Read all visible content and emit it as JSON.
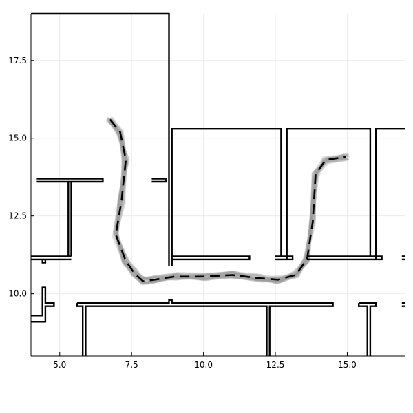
{
  "chart_data": {
    "type": "line",
    "title": "",
    "xlabel": "",
    "ylabel": "",
    "xlim": [
      4.0,
      17.0
    ],
    "ylim": [
      8.0,
      19.0
    ],
    "grid": true,
    "legend": "none",
    "xticks": [
      5.0,
      7.5,
      10.0,
      12.5,
      15.0
    ],
    "xtick_labels": [
      "5.0",
      "7.5",
      "10.0",
      "12.5",
      "15.0"
    ],
    "yticks": [
      10.0,
      12.5,
      15.0,
      17.5
    ],
    "ytick_labels": [
      "10.0",
      "12.5",
      "15.0",
      "17.5"
    ],
    "colors": {
      "walls": "#000000",
      "samples": "#9a9a9a",
      "mean_path": "#000000",
      "grid": "#ebebeb"
    },
    "walls": [
      [
        [
          4.0,
          19.0
        ],
        [
          8.8,
          19.0
        ],
        [
          8.8,
          10.9
        ]
      ],
      [
        [
          8.9,
          10.9
        ],
        [
          8.9,
          15.3
        ],
        [
          12.7,
          15.3
        ],
        [
          12.7,
          11.2
        ]
      ],
      [
        [
          8.9,
          11.2
        ],
        [
          11.6,
          11.2
        ],
        [
          11.6,
          11.1
        ],
        [
          8.9,
          11.1
        ]
      ],
      [
        [
          12.9,
          11.1
        ],
        [
          12.9,
          15.3
        ],
        [
          15.8,
          15.3
        ],
        [
          15.8,
          11.2
        ]
      ],
      [
        [
          12.5,
          11.2
        ],
        [
          13.1,
          11.2
        ],
        [
          13.1,
          11.1
        ],
        [
          12.5,
          11.1
        ]
      ],
      [
        [
          13.6,
          11.2
        ],
        [
          16.2,
          11.2
        ],
        [
          16.2,
          11.1
        ],
        [
          13.6,
          11.1
        ]
      ],
      [
        [
          16.0,
          11.1
        ],
        [
          16.0,
          15.3
        ],
        [
          17.0,
          15.3
        ]
      ],
      [
        [
          16.9,
          11.1
        ],
        [
          17.0,
          11.1
        ]
      ],
      [
        [
          16.9,
          11.2
        ],
        [
          17.0,
          11.2
        ]
      ],
      [
        [
          4.2,
          13.7
        ],
        [
          6.5,
          13.7
        ],
        [
          6.5,
          13.6
        ],
        [
          4.2,
          13.6
        ]
      ],
      [
        [
          5.3,
          13.6
        ],
        [
          5.3,
          11.2
        ]
      ],
      [
        [
          5.4,
          13.6
        ],
        [
          5.4,
          11.2
        ]
      ],
      [
        [
          4.0,
          11.2
        ],
        [
          5.4,
          11.2
        ]
      ],
      [
        [
          4.0,
          11.1
        ],
        [
          5.4,
          11.1
        ]
      ],
      [
        [
          4.4,
          11.1
        ],
        [
          4.4,
          11.0
        ],
        [
          4.5,
          11.0
        ],
        [
          4.5,
          11.1
        ]
      ],
      [
        [
          8.2,
          13.7
        ],
        [
          8.7,
          13.7
        ],
        [
          8.7,
          13.6
        ],
        [
          8.2,
          13.6
        ]
      ],
      [
        [
          4.0,
          9.3
        ],
        [
          4.4,
          9.3
        ],
        [
          4.4,
          10.2
        ],
        [
          4.5,
          10.2
        ],
        [
          4.5,
          9.7
        ],
        [
          4.8,
          9.7
        ],
        [
          4.8,
          9.6
        ],
        [
          4.5,
          9.6
        ],
        [
          4.5,
          9.1
        ],
        [
          4.0,
          9.1
        ]
      ],
      [
        [
          5.6,
          9.7
        ],
        [
          8.8,
          9.7
        ],
        [
          8.8,
          9.8
        ],
        [
          8.9,
          9.8
        ],
        [
          8.9,
          9.7
        ],
        [
          14.5,
          9.7
        ],
        [
          14.5,
          9.6
        ],
        [
          12.3,
          9.6
        ],
        [
          12.3,
          8.0
        ]
      ],
      [
        [
          12.2,
          8.0
        ],
        [
          12.2,
          9.6
        ],
        [
          8.9,
          9.6
        ],
        [
          5.9,
          9.6
        ],
        [
          5.9,
          8.0
        ]
      ],
      [
        [
          5.8,
          8.0
        ],
        [
          5.8,
          9.6
        ],
        [
          5.6,
          9.6
        ],
        [
          5.6,
          9.7
        ]
      ],
      [
        [
          15.4,
          9.7
        ],
        [
          16.0,
          9.7
        ],
        [
          16.0,
          9.6
        ],
        [
          15.8,
          9.6
        ],
        [
          15.8,
          8.0
        ]
      ],
      [
        [
          15.7,
          8.0
        ],
        [
          15.7,
          9.6
        ],
        [
          15.4,
          9.6
        ],
        [
          15.4,
          9.7
        ]
      ],
      [
        [
          16.9,
          9.7
        ],
        [
          17.0,
          9.7
        ]
      ],
      [
        [
          16.9,
          9.6
        ],
        [
          17.0,
          9.6
        ]
      ]
    ],
    "series": [
      {
        "style": "dashed",
        "x": [
          6.75,
          7.1,
          7.3,
          7.15,
          6.95,
          7.3,
          7.6,
          7.9,
          8.3,
          9.0,
          10.0,
          11.0,
          11.9,
          12.6,
          13.2,
          13.6,
          13.8,
          13.9,
          14.25,
          14.95
        ],
        "y": [
          15.6,
          15.2,
          14.3,
          13.0,
          11.9,
          11.05,
          10.65,
          10.4,
          10.45,
          10.55,
          10.55,
          10.6,
          10.5,
          10.45,
          10.6,
          11.1,
          12.3,
          13.85,
          14.3,
          14.4
        ]
      }
    ]
  }
}
